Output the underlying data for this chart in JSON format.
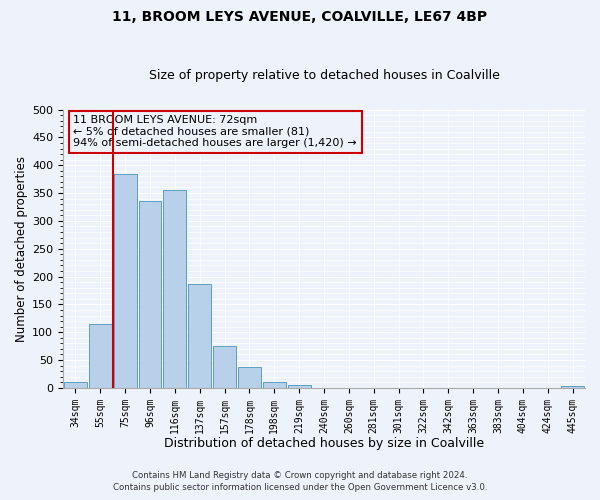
{
  "title": "11, BROOM LEYS AVENUE, COALVILLE, LE67 4BP",
  "subtitle": "Size of property relative to detached houses in Coalville",
  "xlabel": "Distribution of detached houses by size in Coalville",
  "ylabel": "Number of detached properties",
  "bar_labels": [
    "34sqm",
    "55sqm",
    "75sqm",
    "96sqm",
    "116sqm",
    "137sqm",
    "157sqm",
    "178sqm",
    "198sqm",
    "219sqm",
    "240sqm",
    "260sqm",
    "281sqm",
    "301sqm",
    "322sqm",
    "342sqm",
    "363sqm",
    "383sqm",
    "404sqm",
    "424sqm",
    "445sqm"
  ],
  "bar_values": [
    10,
    115,
    385,
    335,
    355,
    187,
    76,
    38,
    11,
    5,
    0,
    0,
    0,
    0,
    0,
    0,
    0,
    0,
    0,
    0,
    3
  ],
  "bar_color": "#b8d0ea",
  "bar_edge_color": "#5a9fc8",
  "vline_color": "#cc0000",
  "ylim": [
    0,
    500
  ],
  "yticks": [
    0,
    50,
    100,
    150,
    200,
    250,
    300,
    350,
    400,
    450,
    500
  ],
  "annotation_box_text": "11 BROOM LEYS AVENUE: 72sqm\n← 5% of detached houses are smaller (81)\n94% of semi-detached houses are larger (1,420) →",
  "annotation_box_color": "#cc0000",
  "background_color": "#eef2fa",
  "grid_color": "#ffffff",
  "footer_line1": "Contains HM Land Registry data © Crown copyright and database right 2024.",
  "footer_line2": "Contains public sector information licensed under the Open Government Licence v3.0."
}
